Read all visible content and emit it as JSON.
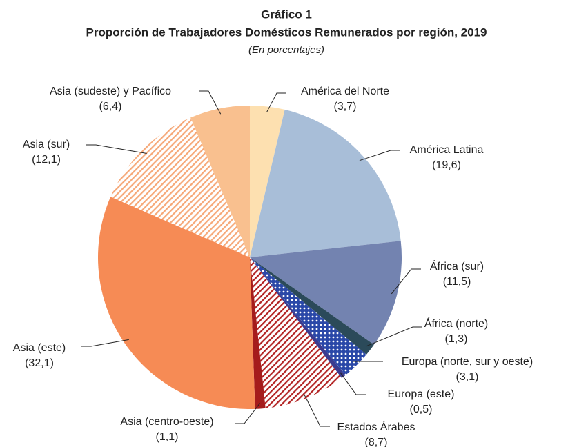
{
  "chart_data": {
    "type": "pie",
    "title": "Gráfico 1",
    "subtitle": "Proporción de Trabajadores Domésticos Remunerados por región, 2019",
    "note": "(En porcentajes)",
    "categories": [
      "América del Norte",
      "América Latina",
      "África (sur)",
      "África (norte)",
      "Europa (norte, sur y oeste)",
      "Europa (este)",
      "Estados Árabes",
      "Asia (centro-oeste)",
      "Asia (este)",
      "Asia (sur)",
      "Asia (sudeste) y Pacífico"
    ],
    "values": [
      3.7,
      19.6,
      11.5,
      1.3,
      3.1,
      0.5,
      8.7,
      1.1,
      32.1,
      12.1,
      6.4
    ],
    "value_labels": [
      "(3,7)",
      "(19,6)",
      "(11,5)",
      "(1,3)",
      "(3,1)",
      "(0,5)",
      "(8,7)",
      "(1,1)",
      "(32,1)",
      "(12,1)",
      "(6,4)"
    ],
    "colors": [
      "#fde0b0",
      "#a8bed8",
      "#7383b0",
      "#2b4a5a",
      "#2a48a8",
      "#3b3b8f",
      "#b22222",
      "#a51c1c",
      "#f68b55",
      "#f6a878",
      "#f9c08f"
    ],
    "patterns": [
      "solid",
      "solid",
      "solid",
      "solid",
      "dots",
      "solid",
      "stripes",
      "solid",
      "solid",
      "stripes",
      "solid"
    ]
  }
}
